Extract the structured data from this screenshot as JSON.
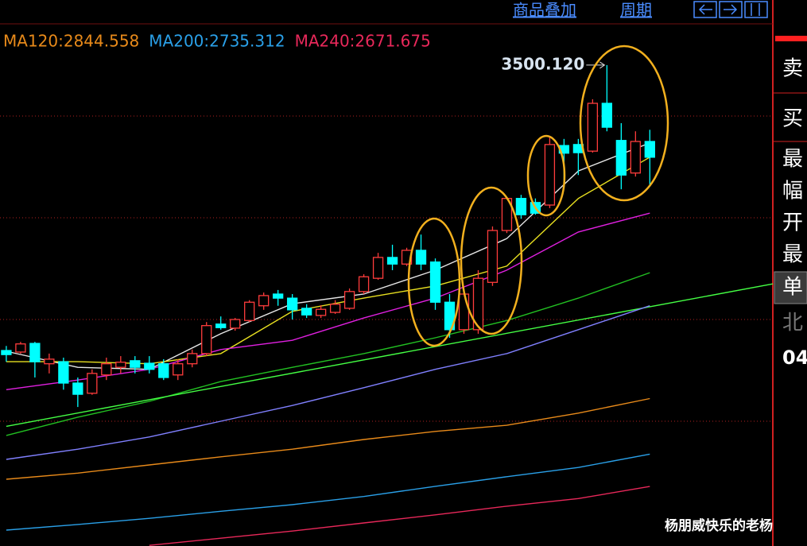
{
  "header": {
    "links": [
      "商品叠加",
      "周期"
    ]
  },
  "side_panel": {
    "labels": [
      "卖",
      "买",
      "最",
      "幅",
      "开",
      "最",
      "单",
      "北",
      "04"
    ]
  },
  "watermark": "杨朋威快乐的老杨",
  "chart_data": {
    "type": "candlestick",
    "categories": [
      null,
      null,
      null,
      null,
      null,
      null,
      null,
      null,
      null,
      null,
      null,
      null,
      null,
      null,
      null,
      null,
      null,
      null,
      null,
      null,
      null,
      null,
      null,
      null,
      null,
      null,
      null,
      null,
      null,
      null,
      null,
      null,
      null,
      null,
      null,
      null,
      null,
      null,
      null,
      null,
      null,
      null,
      null,
      null,
      null,
      null
    ],
    "open": [
      2939,
      2936,
      2953,
      2913,
      2917,
      2875,
      2855,
      2891,
      2906,
      2919,
      2914,
      2913,
      2891,
      2913,
      2933,
      2991,
      2983,
      2998,
      3027,
      3050,
      3042,
      3022,
      3008,
      3014,
      3022,
      3055,
      3081,
      3122,
      3109,
      3136,
      3113,
      3034,
      2980,
      2980,
      3073,
      3175,
      3238,
      3230,
      3225,
      3342,
      3344,
      3331,
      3425,
      3352,
      3288,
      3350
    ],
    "high": [
      2948,
      2956,
      2956,
      2933,
      2925,
      2886,
      2902,
      2925,
      2928,
      2928,
      2928,
      2922,
      2922,
      2941,
      2995,
      3006,
      3003,
      3038,
      3053,
      3058,
      3050,
      3030,
      3028,
      3038,
      3061,
      3089,
      3131,
      3147,
      3141,
      3167,
      3120,
      3050,
      3058,
      3097,
      3183,
      3241,
      3245,
      3238,
      3359,
      3355,
      3355,
      3433,
      3500.12,
      3386,
      3370,
      3373
    ],
    "low": [
      2917,
      2933,
      2886,
      2894,
      2862,
      2828,
      2852,
      2881,
      2894,
      2894,
      2894,
      2881,
      2881,
      2906,
      2928,
      2980,
      2978,
      2995,
      3019,
      3027,
      3000,
      3003,
      3003,
      3011,
      3019,
      3050,
      3078,
      3097,
      3105,
      3097,
      3019,
      2964,
      2972,
      2972,
      3066,
      3170,
      3198,
      3206,
      3219,
      3269,
      3284,
      3328,
      3370,
      3256,
      3281,
      3261
    ],
    "close": [
      2931,
      2952,
      2917,
      2922,
      2875,
      2853,
      2894,
      2913,
      2916,
      2906,
      2902,
      2886,
      2913,
      2933,
      2988,
      2984,
      3000,
      3034,
      3047,
      3042,
      3019,
      3009,
      3020,
      3030,
      3055,
      3084,
      3122,
      3109,
      3136,
      3109,
      3034,
      2980,
      3050,
      3081,
      3175,
      3238,
      3206,
      3209,
      3344,
      3327,
      3328,
      3425,
      3378,
      3284,
      3350,
      3319
    ],
    "up_color": "#ff3c3c",
    "down_color": "#00ffff",
    "xlim": [
      -0.44,
      53.6
    ],
    "ylim": [
      2554.7,
      3581.25
    ],
    "yticks": [
      2800,
      3000,
      3200,
      3400
    ],
    "grid": true,
    "annotation": "3500.120",
    "lines": [
      {
        "color": "#e6e6e6",
        "x": [
          0,
          5,
          10,
          15,
          20,
          25,
          30,
          35,
          40,
          45
        ],
        "values": [
          2937.5,
          2906,
          2902,
          2972,
          3031,
          3050,
          3097,
          3159,
          3292,
          3347
        ]
      },
      {
        "color": "#e8e020",
        "x": [
          0,
          5,
          10,
          15,
          20,
          25,
          30,
          35,
          40,
          45
        ],
        "values": [
          2917,
          2917,
          2913,
          2933,
          3016,
          3042,
          3066,
          3105,
          3238,
          3319
        ]
      },
      {
        "color": "#e020e0",
        "x": [
          0,
          5,
          10,
          15,
          20,
          25,
          30,
          35,
          40,
          45
        ],
        "values": [
          2862,
          2881,
          2902,
          2941,
          2959,
          3003,
          3042,
          3097,
          3172,
          3209
        ]
      },
      {
        "color": "#22c022",
        "x": [
          0,
          5,
          10,
          15,
          20,
          25,
          30,
          35,
          40,
          45
        ],
        "values": [
          2772,
          2808,
          2839,
          2878,
          2906,
          2933,
          2964,
          2998,
          3042,
          3092
        ]
      },
      {
        "color": "#44ff44",
        "x": [
          0,
          53.6
        ],
        "values": [
          2790,
          3070
        ]
      },
      {
        "color": "#8080ff",
        "x": [
          0,
          5,
          10,
          15,
          20,
          25,
          30,
          35,
          40,
          45
        ],
        "values": [
          2725,
          2745,
          2769,
          2800,
          2831,
          2866,
          2902,
          2933,
          2980,
          3027
        ]
      },
      {
        "name": "MA120",
        "legend_label": "MA120:2844.558",
        "color": "#e88a1a",
        "x": [
          0,
          5,
          10,
          15,
          20,
          25,
          30,
          35,
          40,
          45
        ],
        "values": [
          2686,
          2698,
          2714,
          2730,
          2745,
          2764,
          2780,
          2792,
          2816,
          2844.558
        ]
      },
      {
        "name": "MA200",
        "legend_label": "MA200:2735.312",
        "color": "#2aa0e8",
        "x": [
          0,
          5,
          10,
          15,
          20,
          25,
          30,
          35,
          40,
          45
        ],
        "values": [
          2586,
          2597,
          2609,
          2623,
          2636,
          2652,
          2672,
          2691,
          2709,
          2735.312
        ]
      },
      {
        "name": "MA240",
        "legend_label": "MA240:2671.675",
        "color": "#e8285a",
        "x": [
          0,
          5,
          10,
          15,
          20,
          25,
          30,
          35,
          40,
          45
        ],
        "values": [
          null,
          null,
          2556,
          2570,
          2584,
          2600,
          2616,
          2633,
          2648,
          2671.675
        ]
      }
    ]
  }
}
